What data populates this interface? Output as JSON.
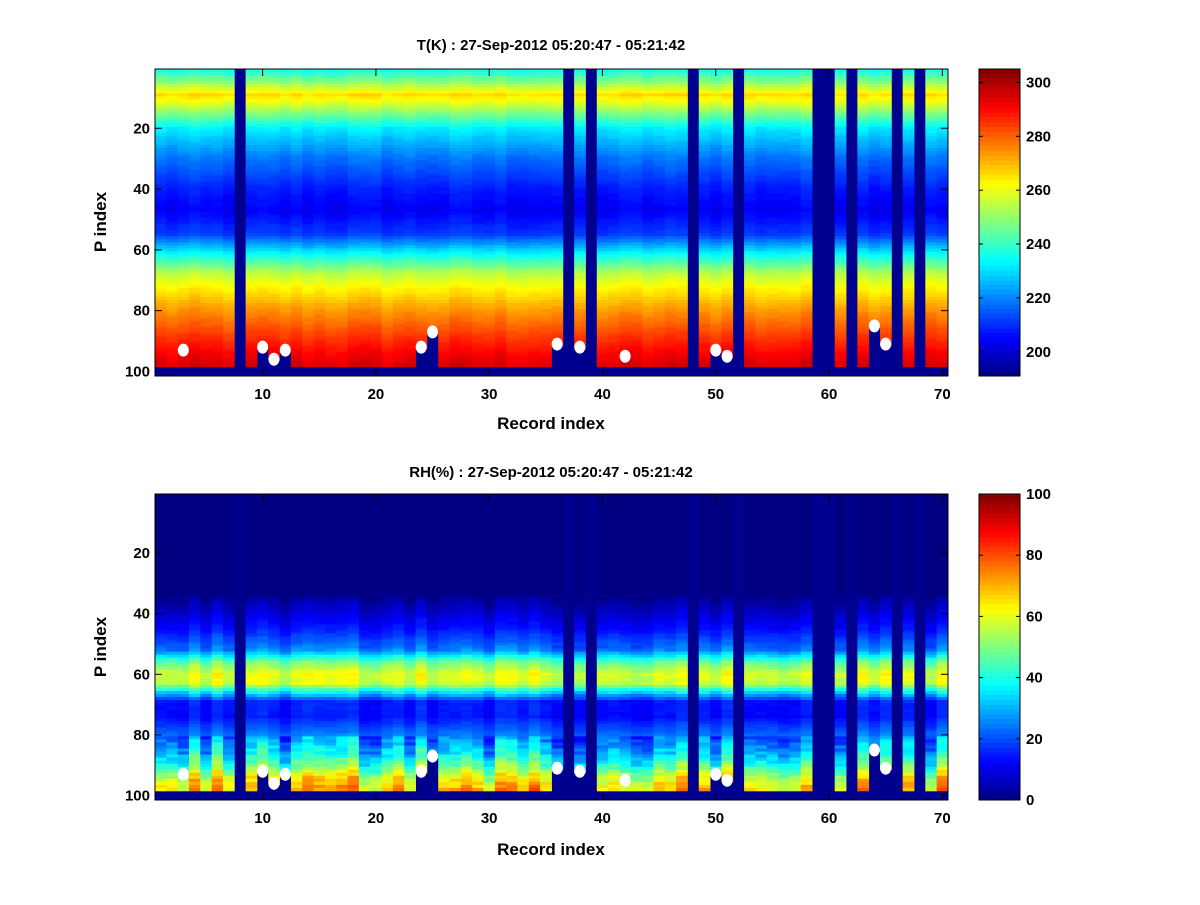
{
  "chart_data": [
    {
      "type": "heatmap",
      "title": "T(K) : 27-Sep-2012 05:20:47 - 05:21:42",
      "xlabel": "Record index",
      "ylabel": "P index",
      "xlim": [
        0.5,
        70.5
      ],
      "ylim": [
        0.5,
        101.5
      ],
      "y_reversed": true,
      "xticks": [
        10,
        20,
        30,
        40,
        50,
        60,
        70
      ],
      "yticks": [
        20,
        40,
        60,
        80,
        100
      ],
      "colormap": "jet",
      "clim": [
        191,
        305
      ],
      "colorbar_ticks": [
        200,
        220,
        240,
        260,
        280,
        300
      ],
      "n_records": 70,
      "n_levels": 101,
      "profile": [
        [
          1,
          236
        ],
        [
          5,
          250
        ],
        [
          9,
          266
        ],
        [
          12,
          258
        ],
        [
          20,
          232
        ],
        [
          30,
          218
        ],
        [
          40,
          208
        ],
        [
          47,
          204
        ],
        [
          55,
          212
        ],
        [
          62,
          236
        ],
        [
          68,
          255
        ],
        [
          72,
          262
        ],
        [
          80,
          274
        ],
        [
          88,
          284
        ],
        [
          94,
          291
        ],
        [
          98,
          295
        ]
      ],
      "noise_amplitude": 4
    },
    {
      "type": "heatmap",
      "title": "RH(%) : 27-Sep-2012 05:20:47 - 05:21:42",
      "xlabel": "Record index",
      "ylabel": "P index",
      "xlim": [
        0.5,
        70.5
      ],
      "ylim": [
        0.5,
        101.5
      ],
      "y_reversed": true,
      "xticks": [
        10,
        20,
        30,
        40,
        50,
        60,
        70
      ],
      "yticks": [
        20,
        40,
        60,
        80,
        100
      ],
      "colormap": "jet",
      "clim": [
        0,
        100
      ],
      "colorbar_ticks": [
        0,
        20,
        40,
        60,
        80,
        100
      ],
      "n_records": 70,
      "n_levels": 101,
      "profile": [
        [
          1,
          0
        ],
        [
          33,
          0
        ],
        [
          38,
          6
        ],
        [
          45,
          14
        ],
        [
          52,
          25
        ],
        [
          56,
          48
        ],
        [
          60,
          60
        ],
        [
          63,
          58
        ],
        [
          66,
          35
        ],
        [
          69,
          15
        ],
        [
          74,
          14
        ],
        [
          80,
          24
        ],
        [
          86,
          34
        ],
        [
          90,
          45
        ],
        [
          94,
          60
        ],
        [
          98,
          68
        ]
      ],
      "noise_amplitude": 14
    }
  ],
  "shared": {
    "missing_records": [
      8,
      37,
      39,
      48,
      52,
      59,
      60,
      62,
      66,
      68
    ],
    "valid_bottom_level": 98,
    "surface_markers": [
      {
        "record": 3,
        "level": 93
      },
      {
        "record": 10,
        "level": 92
      },
      {
        "record": 11,
        "level": 96
      },
      {
        "record": 12,
        "level": 93
      },
      {
        "record": 24,
        "level": 92
      },
      {
        "record": 25,
        "level": 87
      },
      {
        "record": 36,
        "level": 91
      },
      {
        "record": 38,
        "level": 92
      },
      {
        "record": 42,
        "level": 95
      },
      {
        "record": 50,
        "level": 93
      },
      {
        "record": 51,
        "level": 95
      },
      {
        "record": 64,
        "level": 85
      },
      {
        "record": 65,
        "level": 91
      }
    ],
    "truncated_records": [
      10,
      11,
      12,
      24,
      25,
      36,
      38,
      50,
      51,
      64,
      65
    ],
    "missing_color": "#00008f",
    "marker_color": "#ffffff"
  }
}
